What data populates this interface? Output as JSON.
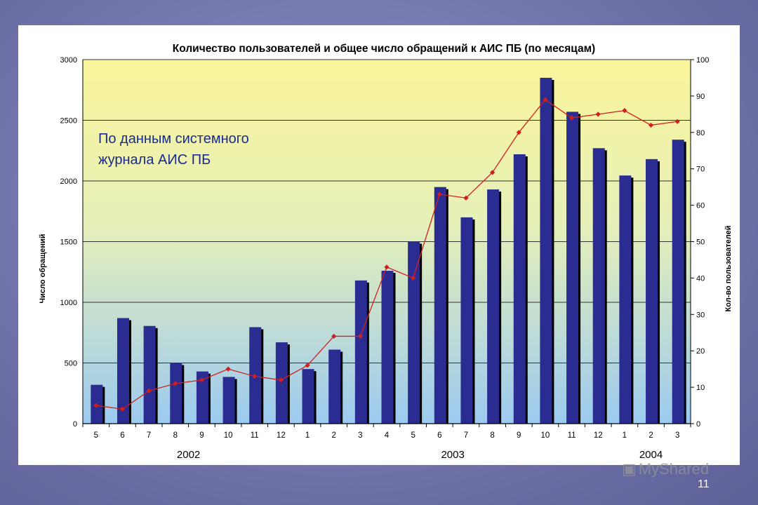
{
  "slide_number": "11",
  "watermark": "MyShared",
  "colors": {
    "bar": "#2a2c91",
    "bar_shadow": "#000000",
    "line": "#d21e1e",
    "grid": "#333333",
    "bg_top": "#faf59c",
    "bg_bottom": "#9ccaf0",
    "note": "#1a2a8c"
  },
  "chart_data": {
    "type": "bar",
    "title": "Количество пользователей и общее число обращений к АИС ПБ (по месяцам)",
    "annotation": [
      "По данным системного",
      "журнала АИС ПБ"
    ],
    "ylabel": "Число обращений",
    "y2label": "Кол-во пользователей",
    "ylim": [
      0,
      3000
    ],
    "y2lim": [
      0,
      100
    ],
    "yticks": [
      0,
      500,
      1000,
      1500,
      2000,
      2500,
      3000
    ],
    "y2ticks": [
      0,
      10,
      20,
      30,
      40,
      50,
      60,
      70,
      80,
      90,
      100
    ],
    "grid": true,
    "categories": [
      "5",
      "6",
      "7",
      "8",
      "9",
      "10",
      "11",
      "12",
      "1",
      "2",
      "3",
      "4",
      "5",
      "6",
      "7",
      "8",
      "9",
      "10",
      "11",
      "12",
      "1",
      "2",
      "3"
    ],
    "year_groups": [
      {
        "label": "2002",
        "start": 0,
        "end": 7
      },
      {
        "label": "2003",
        "start": 8,
        "end": 19
      },
      {
        "label": "2004",
        "start": 20,
        "end": 22
      }
    ],
    "series": [
      {
        "name": "Число обращений",
        "kind": "bar",
        "axis": "left",
        "values": [
          320,
          870,
          805,
          500,
          430,
          385,
          795,
          670,
          450,
          610,
          1180,
          1260,
          1500,
          1950,
          1700,
          1930,
          2220,
          2850,
          2570,
          2270,
          2045,
          2180,
          2340
        ]
      },
      {
        "name": "Кол-во пользователей",
        "kind": "line",
        "axis": "right",
        "values": [
          5,
          4,
          9,
          11,
          12,
          15,
          13,
          12,
          16,
          24,
          24,
          43,
          40,
          63,
          62,
          69,
          80,
          89,
          84,
          85,
          86,
          82,
          83
        ]
      }
    ]
  }
}
